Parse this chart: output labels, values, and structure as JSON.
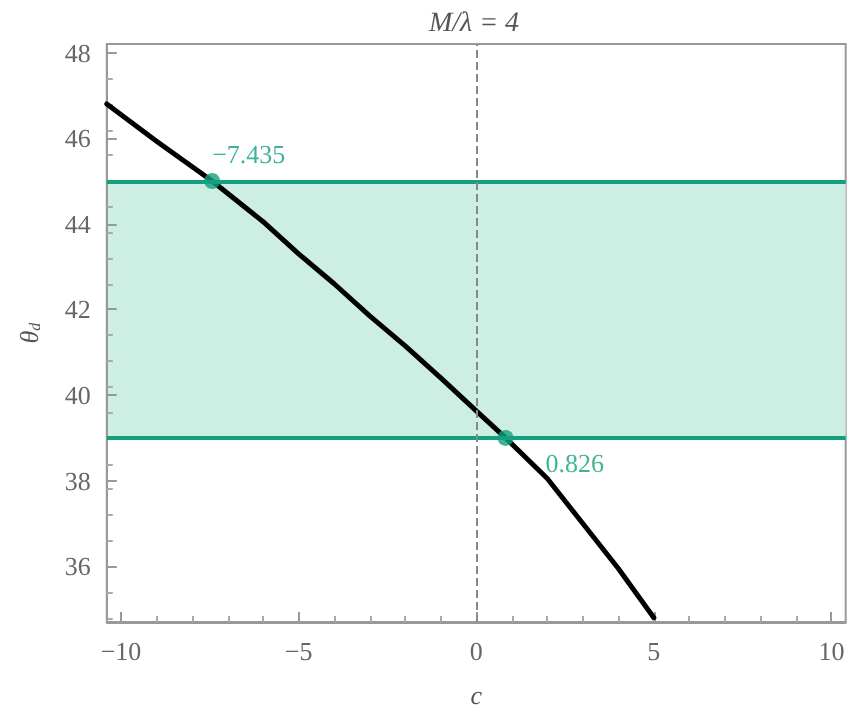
{
  "chart_data": {
    "type": "line",
    "title": "M/λ = 4",
    "xlabel": "c",
    "ylabel": "θ$_{d}$",
    "xlim": [
      -10.4,
      10.4
    ],
    "xticks": [
      -10,
      -5,
      0,
      5,
      10
    ],
    "ylim": [
      34.7,
      48.2
    ],
    "yticks": [
      36,
      38,
      40,
      42,
      44,
      46,
      48
    ],
    "grid": false,
    "series": [
      {
        "color": "#000000",
        "marker": "none",
        "x": [
          -10.4,
          -9,
          -7.435,
          -6,
          -5,
          -4,
          -3,
          -2,
          -1,
          0,
          0.826,
          2,
          3,
          4,
          5
        ],
        "values": [
          46.8,
          45.93,
          45,
          44.05,
          43.3,
          42.6,
          41.85,
          41.15,
          40.4,
          39.63,
          39,
          38.05,
          37.0,
          35.95,
          34.8
        ]
      },
      {
        "type": "scatter",
        "color": "#13a07e",
        "marker": "circle",
        "x": [
          -7.435,
          0.826
        ],
        "values": [
          45,
          39
        ]
      }
    ],
    "bands": [
      {
        "axis": "y",
        "from": 39,
        "to": 45,
        "color": "#cdeee3"
      }
    ],
    "ref_lines": [
      {
        "axis": "y",
        "value": 45,
        "color": "#13a07e",
        "line_style": "solid"
      },
      {
        "axis": "y",
        "value": 39,
        "color": "#13a07e",
        "line_style": "solid"
      },
      {
        "axis": "x",
        "value": 0,
        "color": "#888888",
        "line_style": "dashed"
      }
    ],
    "annotations": [
      {
        "text": "−7.435",
        "x": -7.435,
        "y": 45
      },
      {
        "text": "0.826",
        "x": 0.826,
        "y": 39
      }
    ]
  }
}
